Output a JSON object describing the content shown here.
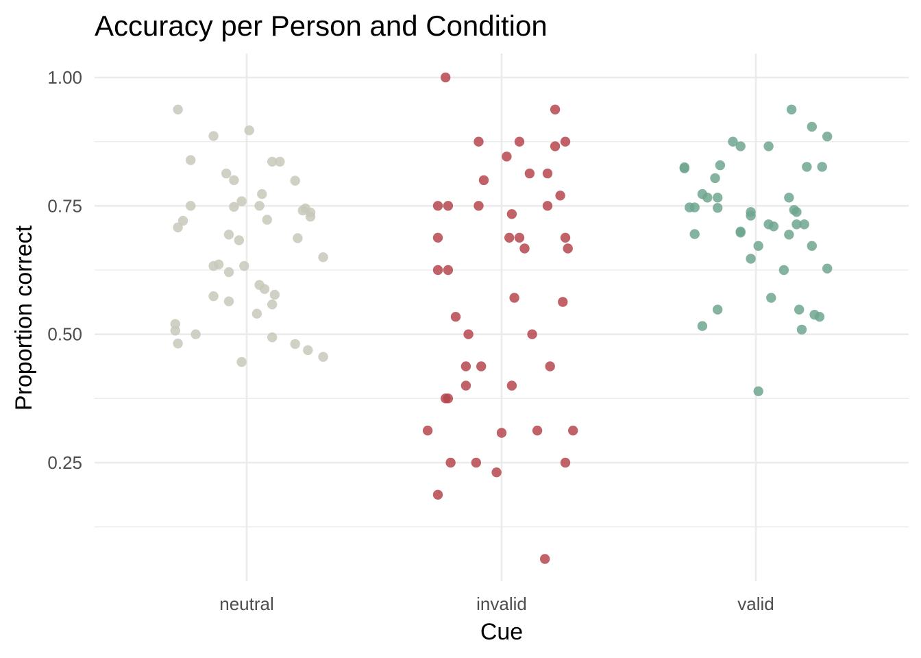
{
  "chart_data": {
    "type": "scatter",
    "title": "Accuracy per Person and Condition",
    "xlabel": "Cue",
    "ylabel": "Proportion correct",
    "categories": [
      "neutral",
      "invalid",
      "valid"
    ],
    "ylim": [
      0.1,
      1.0
    ],
    "y_ticks": [
      {
        "value": 0.25,
        "label": "0.25"
      },
      {
        "value": 0.5,
        "label": "0.50"
      },
      {
        "value": 0.75,
        "label": "0.75"
      },
      {
        "value": 1.0,
        "label": "1.00"
      }
    ],
    "grid": true,
    "jittered": true,
    "colors": {
      "neutral": "#c8c8bb",
      "invalid": "#b5474c",
      "valid": "#6fa68f"
    },
    "series": [
      {
        "values": [
          0.9375,
          0.886,
          0.897,
          0.839,
          0.813,
          0.8,
          0.836,
          0.836,
          0.799,
          0.75,
          0.721,
          0.708,
          0.748,
          0.759,
          0.773,
          0.75,
          0.723,
          0.741,
          0.745,
          0.737,
          0.729,
          0.694,
          0.683,
          0.687,
          0.633,
          0.636,
          0.621,
          0.633,
          0.65,
          0.574,
          0.564,
          0.596,
          0.588,
          0.577,
          0.558,
          0.54,
          0.52,
          0.507,
          0.482,
          0.5,
          0.494,
          0.446,
          0.481,
          0.469,
          0.456
        ],
        "jitter": [
          -0.27,
          -0.13,
          0.01,
          -0.22,
          -0.08,
          -0.05,
          0.1,
          0.13,
          0.19,
          -0.22,
          -0.25,
          -0.27,
          -0.05,
          -0.02,
          0.06,
          0.05,
          0.08,
          0.22,
          0.23,
          0.25,
          0.25,
          -0.07,
          -0.03,
          0.2,
          -0.13,
          -0.11,
          -0.07,
          -0.01,
          0.3,
          -0.13,
          -0.07,
          0.05,
          0.07,
          0.11,
          0.1,
          0.04,
          -0.28,
          -0.28,
          -0.27,
          -0.2,
          0.1,
          -0.02,
          0.19,
          0.24,
          0.3
        ]
      },
      {
        "values": [
          1.0,
          0.9375,
          0.875,
          0.875,
          0.866,
          0.875,
          0.846,
          0.813,
          0.813,
          0.8,
          0.75,
          0.75,
          0.75,
          0.75,
          0.77,
          0.734,
          0.688,
          0.688,
          0.688,
          0.688,
          0.667,
          0.667,
          0.625,
          0.625,
          0.571,
          0.563,
          0.534,
          0.5,
          0.5,
          0.4375,
          0.4375,
          0.4375,
          0.4,
          0.4,
          0.375,
          0.375,
          0.3125,
          0.3125,
          0.3125,
          0.308,
          0.25,
          0.25,
          0.25,
          0.231,
          0.1875,
          0.0625
        ],
        "jitter": [
          -0.22,
          0.21,
          -0.09,
          0.07,
          0.21,
          0.25,
          0.02,
          0.11,
          0.18,
          -0.07,
          -0.25,
          -0.21,
          -0.09,
          0.18,
          0.23,
          0.04,
          -0.25,
          0.03,
          0.07,
          0.25,
          0.09,
          0.26,
          -0.25,
          -0.21,
          0.05,
          0.24,
          -0.18,
          -0.13,
          0.12,
          -0.14,
          -0.08,
          0.19,
          -0.14,
          0.04,
          -0.22,
          -0.21,
          0.14,
          0.28,
          -0.29,
          0.0,
          -0.2,
          -0.1,
          0.25,
          -0.02,
          -0.25,
          0.17
        ]
      },
      {
        "values": [
          0.9375,
          0.904,
          0.885,
          0.875,
          0.866,
          0.866,
          0.829,
          0.825,
          0.823,
          0.826,
          0.826,
          0.804,
          0.773,
          0.766,
          0.766,
          0.766,
          0.747,
          0.747,
          0.746,
          0.742,
          0.738,
          0.738,
          0.731,
          0.714,
          0.714,
          0.714,
          0.71,
          0.7,
          0.698,
          0.695,
          0.694,
          0.672,
          0.672,
          0.647,
          0.628,
          0.625,
          0.571,
          0.548,
          0.548,
          0.538,
          0.534,
          0.516,
          0.509,
          0.389
        ],
        "jitter": [
          0.14,
          0.22,
          0.28,
          -0.09,
          -0.06,
          0.05,
          -0.14,
          -0.28,
          -0.28,
          0.2,
          0.26,
          -0.16,
          -0.21,
          -0.19,
          -0.15,
          0.13,
          -0.26,
          -0.24,
          -0.15,
          0.15,
          -0.02,
          0.16,
          -0.02,
          0.05,
          0.16,
          0.19,
          0.07,
          -0.06,
          -0.06,
          -0.24,
          0.13,
          0.01,
          0.22,
          -0.02,
          0.28,
          0.11,
          0.06,
          -0.15,
          0.17,
          0.23,
          0.25,
          -0.21,
          0.18,
          0.01
        ]
      }
    ]
  }
}
